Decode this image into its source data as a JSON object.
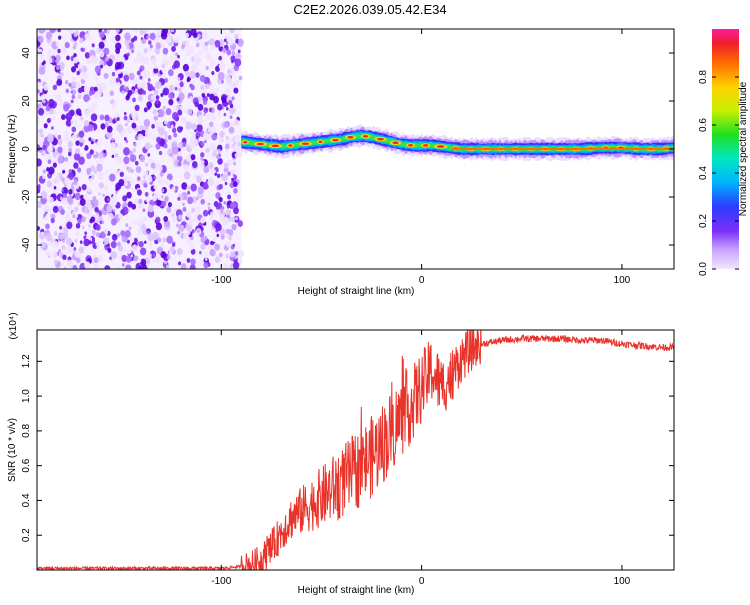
{
  "title": "C2E2.2026.039.05.42.E34",
  "chart_data": [
    {
      "type": "heatmap",
      "name": "spectrogram",
      "xlabel": "Height of straight line (km)",
      "ylabel": "Frequency (Hz)",
      "xlim": [
        -192,
        126
      ],
      "ylim": [
        -50,
        50
      ],
      "xticks": [
        -100,
        0,
        100
      ],
      "yticks": [
        -40,
        -20,
        0,
        20,
        40
      ],
      "noise_region_x": [
        -192,
        -90
      ],
      "ridge": {
        "x": [
          -90,
          -85,
          -80,
          -75,
          -70,
          -65,
          -60,
          -55,
          -50,
          -45,
          -40,
          -35,
          -30,
          -25,
          -20,
          -15,
          -10,
          -5,
          0,
          5,
          10,
          15,
          20,
          30,
          40,
          50,
          60,
          70,
          80,
          90,
          100,
          110,
          120,
          126
        ],
        "freq": [
          3,
          2.5,
          2,
          1.5,
          1,
          1.5,
          2,
          2.5,
          3,
          3.5,
          4,
          5,
          5.5,
          5,
          4,
          3,
          2,
          1.5,
          1.5,
          1.5,
          1,
          0.5,
          0,
          0,
          0,
          0,
          0,
          0,
          0,
          0.5,
          0.5,
          0,
          0,
          0.5
        ]
      },
      "colorbar": {
        "label": "Normalized spectral amplitude",
        "range": [
          0,
          1
        ],
        "ticks": [
          "0.0",
          "0.2",
          "0.4",
          "0.6",
          "0.8"
        ]
      }
    },
    {
      "type": "line",
      "name": "snr",
      "xlabel": "Height of straight line (km)",
      "ylabel": "SNR (10 * v/v)",
      "y_multiplier_label": "(x10⁴)",
      "xlim": [
        -192,
        126
      ],
      "ylim": [
        0,
        1.38
      ],
      "xticks": [
        -100,
        0,
        100
      ],
      "yticks": [
        0.2,
        0.4,
        0.6,
        0.8,
        1.0,
        1.2
      ],
      "series": [
        {
          "name": "SNR",
          "color": "#e8332a",
          "x": [
            -192,
            -100,
            -90,
            -85,
            -80,
            -75,
            -70,
            -65,
            -60,
            -55,
            -50,
            -45,
            -40,
            -35,
            -30,
            -25,
            -20,
            -15,
            -10,
            -5,
            0,
            5,
            10,
            15,
            20,
            25,
            30,
            40,
            50,
            60,
            70,
            80,
            90,
            100,
            110,
            120,
            126
          ],
          "values": [
            0.01,
            0.01,
            0.02,
            0.03,
            0.06,
            0.12,
            0.22,
            0.3,
            0.34,
            0.38,
            0.42,
            0.46,
            0.5,
            0.55,
            0.6,
            0.65,
            0.72,
            0.8,
            0.88,
            0.95,
            1.05,
            1.15,
            1.05,
            1.12,
            1.22,
            1.27,
            1.3,
            1.32,
            1.33,
            1.33,
            1.33,
            1.32,
            1.32,
            1.3,
            1.29,
            1.28,
            1.28
          ]
        }
      ]
    }
  ]
}
